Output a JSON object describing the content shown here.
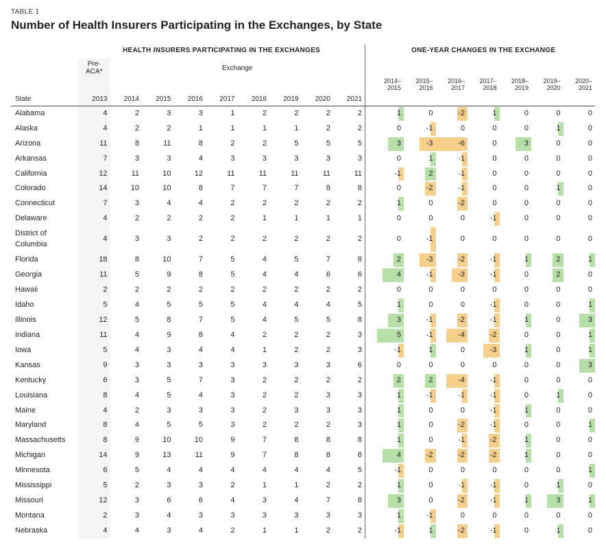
{
  "tableNumber": "TABLE 1",
  "title": "Number of Health Insurers Participating in the Exchanges, by State",
  "colors": {
    "positive": "#b7dfa8",
    "negative": "#f6cf8b",
    "preaca_bg": "#f5f5f5",
    "border": "#444444"
  },
  "sectionHeaders": {
    "left": "HEALTH INSURERS PARTICIPATING IN THE EXCHANGES",
    "right": "ONE-YEAR CHANGES IN THE EXCHANGE"
  },
  "subHeaders": {
    "preAca": "Pre-ACA*",
    "exchange": "Exchange"
  },
  "stateLabel": "State",
  "participationYears": [
    "2013",
    "2014",
    "2015",
    "2016",
    "2017",
    "2018",
    "2019",
    "2020",
    "2021"
  ],
  "changeRanges": [
    {
      "top": "2014–",
      "bot": "2015"
    },
    {
      "top": "2015–",
      "bot": "2016"
    },
    {
      "top": "2016–",
      "bot": "2017"
    },
    {
      "top": "2017–",
      "bot": "2018"
    },
    {
      "top": "2018–",
      "bot": "2019"
    },
    {
      "top": "2019–",
      "bot": "2020"
    },
    {
      "top": "2020–",
      "bot": "2021"
    }
  ],
  "rows": [
    {
      "state": "Alabama",
      "p": [
        4,
        2,
        3,
        3,
        1,
        2,
        2,
        2,
        2
      ],
      "c": [
        1,
        0,
        -2,
        1,
        0,
        0,
        0
      ]
    },
    {
      "state": "Alaska",
      "p": [
        4,
        2,
        2,
        1,
        1,
        1,
        1,
        2,
        2
      ],
      "c": [
        0,
        -1,
        0,
        0,
        0,
        1,
        0
      ]
    },
    {
      "state": "Arizona",
      "p": [
        11,
        8,
        11,
        8,
        2,
        2,
        5,
        5,
        5
      ],
      "c": [
        3,
        -3,
        -6,
        0,
        3,
        0,
        0
      ]
    },
    {
      "state": "Arkansas",
      "p": [
        7,
        3,
        3,
        4,
        3,
        3,
        3,
        3,
        3
      ],
      "c": [
        0,
        1,
        -1,
        0,
        0,
        0,
        0
      ]
    },
    {
      "state": "California",
      "p": [
        12,
        11,
        10,
        12,
        11,
        11,
        11,
        11,
        11
      ],
      "c": [
        -1,
        2,
        -1,
        0,
        0,
        0,
        0
      ]
    },
    {
      "state": "Colorado",
      "p": [
        14,
        10,
        10,
        8,
        7,
        7,
        7,
        8,
        8
      ],
      "c": [
        0,
        -2,
        -1,
        0,
        0,
        1,
        0
      ]
    },
    {
      "state": "Connecticut",
      "p": [
        7,
        3,
        4,
        4,
        2,
        2,
        2,
        2,
        2
      ],
      "c": [
        1,
        0,
        -2,
        0,
        0,
        0,
        0
      ]
    },
    {
      "state": "Delaware",
      "p": [
        4,
        2,
        2,
        2,
        2,
        1,
        1,
        1,
        1
      ],
      "c": [
        0,
        0,
        0,
        -1,
        0,
        0,
        0
      ]
    },
    {
      "state": "District of Columbia",
      "p": [
        4,
        3,
        3,
        2,
        2,
        2,
        2,
        2,
        2
      ],
      "c": [
        0,
        -1,
        0,
        0,
        0,
        0,
        0
      ]
    },
    {
      "state": "Florida",
      "p": [
        18,
        8,
        10,
        7,
        5,
        4,
        5,
        7,
        8
      ],
      "c": [
        2,
        -3,
        -2,
        -1,
        1,
        2,
        1
      ]
    },
    {
      "state": "Georgia",
      "p": [
        11,
        5,
        9,
        8,
        5,
        4,
        4,
        6,
        6
      ],
      "c": [
        4,
        -1,
        -3,
        -1,
        0,
        2,
        0
      ]
    },
    {
      "state": "Hawaii",
      "p": [
        2,
        2,
        2,
        2,
        2,
        2,
        2,
        2,
        2
      ],
      "c": [
        0,
        0,
        0,
        0,
        0,
        0,
        0
      ]
    },
    {
      "state": "Idaho",
      "p": [
        5,
        4,
        5,
        5,
        5,
        4,
        4,
        4,
        5
      ],
      "c": [
        1,
        0,
        0,
        -1,
        0,
        0,
        1
      ]
    },
    {
      "state": "Illinois",
      "p": [
        12,
        5,
        8,
        7,
        5,
        4,
        5,
        5,
        8
      ],
      "c": [
        3,
        -1,
        -2,
        -1,
        1,
        0,
        3
      ]
    },
    {
      "state": "Indiana",
      "p": [
        11,
        4,
        9,
        8,
        4,
        2,
        2,
        2,
        3
      ],
      "c": [
        5,
        -1,
        -4,
        -2,
        0,
        0,
        1
      ]
    },
    {
      "state": "Iowa",
      "p": [
        5,
        4,
        3,
        4,
        4,
        1,
        2,
        2,
        3
      ],
      "c": [
        -1,
        1,
        0,
        -3,
        1,
        0,
        1
      ]
    },
    {
      "state": "Kansas",
      "p": [
        9,
        3,
        3,
        3,
        3,
        3,
        3,
        3,
        6
      ],
      "c": [
        0,
        0,
        0,
        0,
        0,
        0,
        3
      ]
    },
    {
      "state": "Kentucky",
      "p": [
        6,
        3,
        5,
        7,
        3,
        2,
        2,
        2,
        2
      ],
      "c": [
        2,
        2,
        -4,
        -1,
        0,
        0,
        0
      ]
    },
    {
      "state": "Louisiana",
      "p": [
        8,
        4,
        5,
        4,
        3,
        2,
        2,
        3,
        3
      ],
      "c": [
        1,
        -1,
        -1,
        -1,
        0,
        1,
        0
      ]
    },
    {
      "state": "Maine",
      "p": [
        4,
        2,
        3,
        3,
        3,
        2,
        3,
        3,
        3
      ],
      "c": [
        1,
        0,
        0,
        -1,
        1,
        0,
        0
      ]
    },
    {
      "state": "Maryland",
      "p": [
        8,
        4,
        5,
        5,
        3,
        2,
        2,
        2,
        3
      ],
      "c": [
        1,
        0,
        -2,
        -1,
        0,
        0,
        1
      ]
    },
    {
      "state": "Massachusetts",
      "p": [
        8,
        9,
        10,
        10,
        9,
        7,
        8,
        8,
        8
      ],
      "c": [
        1,
        0,
        -1,
        -2,
        1,
        0,
        0
      ]
    },
    {
      "state": "Michigan",
      "p": [
        14,
        9,
        13,
        11,
        9,
        7,
        8,
        8,
        8
      ],
      "c": [
        4,
        -2,
        -2,
        -2,
        1,
        0,
        0
      ]
    },
    {
      "state": "Minnesota",
      "p": [
        6,
        5,
        4,
        4,
        4,
        4,
        4,
        4,
        5
      ],
      "c": [
        -1,
        0,
        0,
        0,
        0,
        0,
        1
      ]
    },
    {
      "state": "Mississippi",
      "p": [
        5,
        2,
        3,
        3,
        2,
        1,
        1,
        2,
        2
      ],
      "c": [
        1,
        0,
        -1,
        -1,
        0,
        1,
        0
      ]
    },
    {
      "state": "Missouri",
      "p": [
        12,
        3,
        6,
        6,
        4,
        3,
        4,
        7,
        8
      ],
      "c": [
        3,
        0,
        -2,
        -1,
        1,
        3,
        1
      ]
    },
    {
      "state": "Montana",
      "p": [
        2,
        3,
        4,
        3,
        3,
        3,
        3,
        3,
        3
      ],
      "c": [
        1,
        -1,
        0,
        0,
        0,
        0,
        0
      ]
    },
    {
      "state": "Nebraska",
      "p": [
        4,
        4,
        3,
        4,
        2,
        1,
        1,
        2,
        2
      ],
      "c": [
        -1,
        1,
        -2,
        -1,
        0,
        1,
        0
      ]
    }
  ],
  "maxAbsChange": 6
}
